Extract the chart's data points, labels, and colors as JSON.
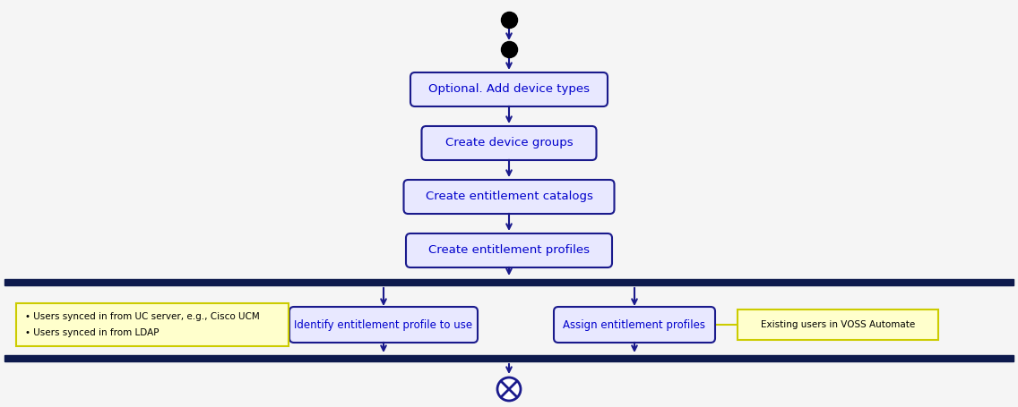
{
  "bg_color": "#f5f5f5",
  "box_bg": "#e8e8ff",
  "box_edge": "#1a1a8c",
  "box_text_color": "#0000cc",
  "arrow_color": "#1a1a8c",
  "note_bg": "#ffffcc",
  "note_edge": "#cccc00",
  "bar_color": "#0d1a4d",
  "sequential_boxes": [
    "Optional. Add device types",
    "Create device groups",
    "Create entitlement catalogs",
    "Create entitlement profiles"
  ],
  "fork_box_left": "Identify entitlement profile to use",
  "fork_box_right": "Assign entitlement profiles",
  "note_left_lines": [
    "• Users synced in from UC server, e.g., Cisco UCM",
    "• Users synced in from LDAP"
  ],
  "note_right_text": "Existing users in VOSS Automate",
  "fig_width": 11.36,
  "fig_height": 4.55
}
